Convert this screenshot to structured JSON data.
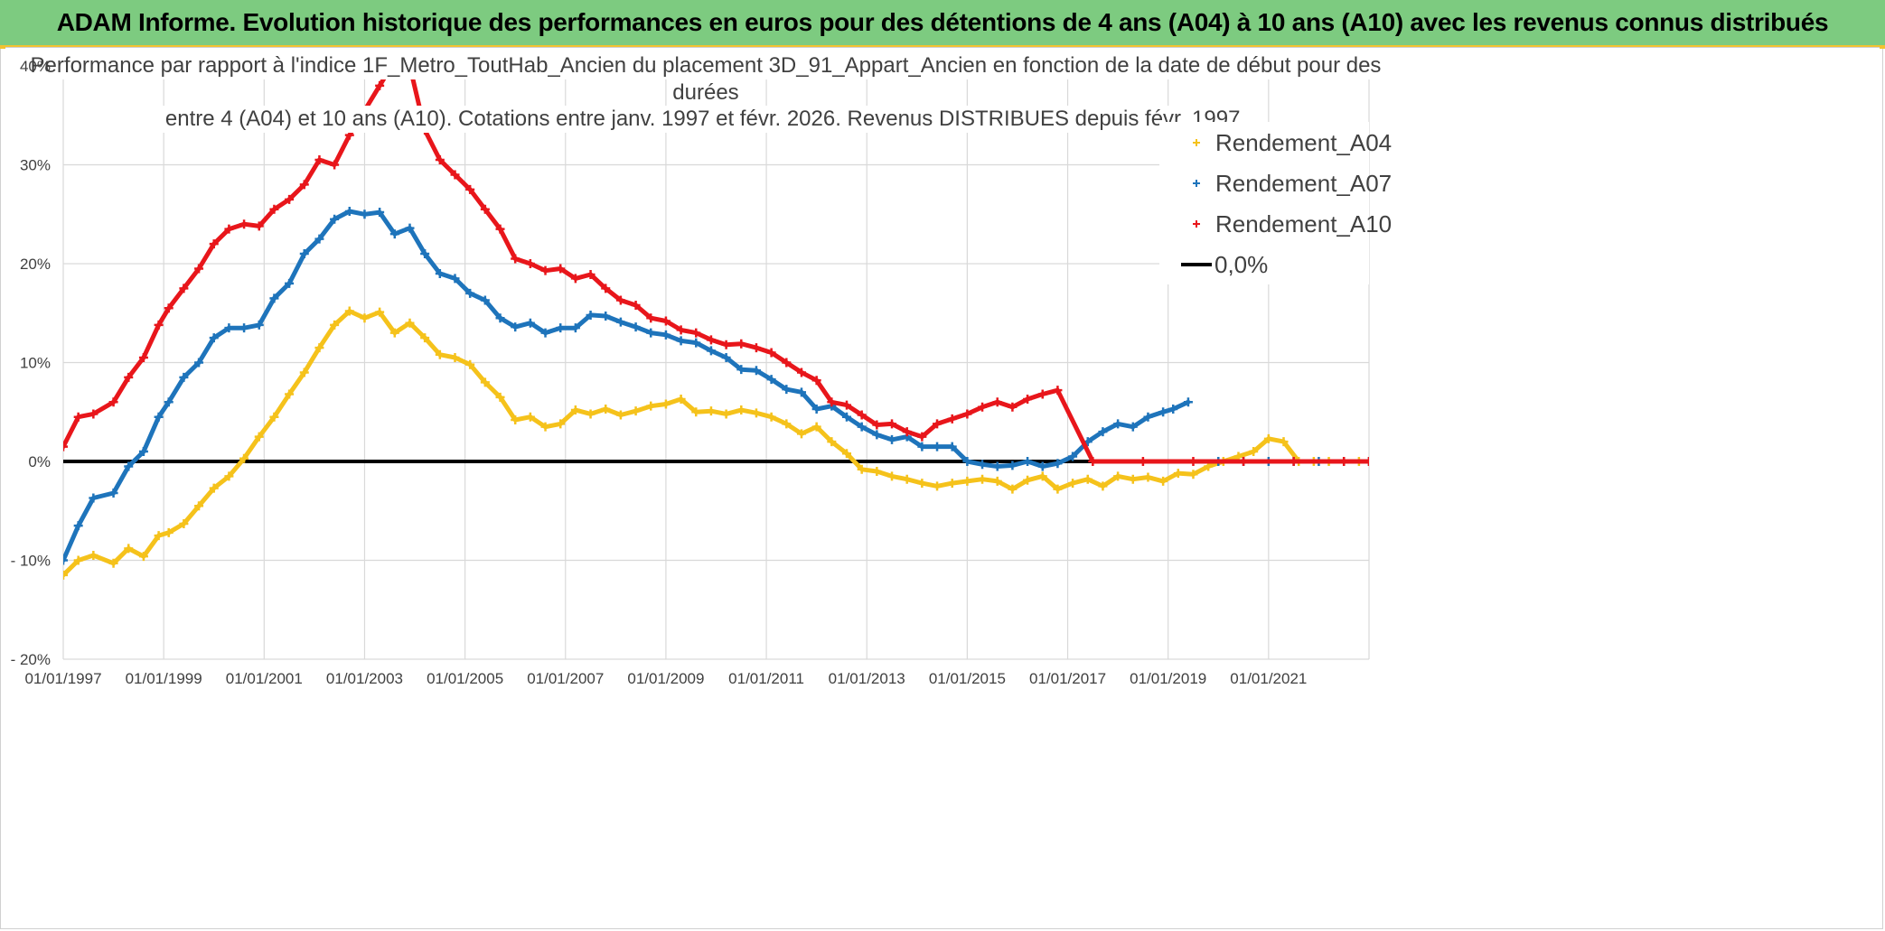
{
  "banner": {
    "title": "ADAM Informe. Evolution historique des performances en euros pour des détentions de 4 ans (A04) à 10 ans (A10) avec les revenus connus distribués"
  },
  "chart_data": {
    "type": "line",
    "title_lines": [
      "Performance par rapport à l'indice 1F_Metro_ToutHab_Ancien  du placement 3D_91_Appart_Ancien en fonction de la date de début pour des",
      "durées",
      "entre 4 (A04) et 10 ans (A10). Cotations entre janv. 1997 et févr. 2026. Revenus DISTRIBUES depuis févr. 1997."
    ],
    "xlabel": "",
    "ylabel": "",
    "x_range": [
      "1997-01-01",
      "2022-12-31"
    ],
    "ylim": [
      -20,
      40
    ],
    "y_ticks": [
      {
        "value": 40,
        "label": "40%"
      },
      {
        "value": 30,
        "label": "30%"
      },
      {
        "value": 20,
        "label": "20%"
      },
      {
        "value": 10,
        "label": "10%"
      },
      {
        "value": 0,
        "label": "0%"
      },
      {
        "value": -10,
        "label": "- 10%"
      },
      {
        "value": -20,
        "label": "- 20%"
      }
    ],
    "x_ticks": [
      {
        "value": 1997.0,
        "label": "01/01/1997"
      },
      {
        "value": 1999.0,
        "label": "01/01/1999"
      },
      {
        "value": 2001.0,
        "label": "01/01/2001"
      },
      {
        "value": 2003.0,
        "label": "01/01/2003"
      },
      {
        "value": 2005.0,
        "label": "01/01/2005"
      },
      {
        "value": 2007.0,
        "label": "01/01/2007"
      },
      {
        "value": 2009.0,
        "label": "01/01/2009"
      },
      {
        "value": 2011.0,
        "label": "01/01/2011"
      },
      {
        "value": 2013.0,
        "label": "01/01/2013"
      },
      {
        "value": 2015.0,
        "label": "01/01/2015"
      },
      {
        "value": 2017.0,
        "label": "01/01/2017"
      },
      {
        "value": 2019.0,
        "label": "01/01/2019"
      },
      {
        "value": 2021.0,
        "label": "01/01/2021"
      }
    ],
    "grid": true,
    "legend_position": "top-right",
    "series": [
      {
        "name": "Rendement_A04",
        "color": "#f5c21b",
        "x": [
          1997.0,
          1997.3,
          1997.6,
          1998.0,
          1998.3,
          1998.6,
          1998.9,
          1999.1,
          1999.4,
          1999.7,
          2000.0,
          2000.3,
          2000.6,
          2000.9,
          2001.2,
          2001.5,
          2001.8,
          2002.1,
          2002.4,
          2002.7,
          2003.0,
          2003.3,
          2003.6,
          2003.9,
          2004.2,
          2004.5,
          2004.8,
          2005.1,
          2005.4,
          2005.7,
          2006.0,
          2006.3,
          2006.6,
          2006.9,
          2007.2,
          2007.5,
          2007.8,
          2008.1,
          2008.4,
          2008.7,
          2009.0,
          2009.3,
          2009.6,
          2009.9,
          2010.2,
          2010.5,
          2010.8,
          2011.1,
          2011.4,
          2011.7,
          2012.0,
          2012.3,
          2012.6,
          2012.9,
          2013.2,
          2013.5,
          2013.8,
          2014.1,
          2014.4,
          2014.7,
          2015.0,
          2015.3,
          2015.6,
          2015.9,
          2016.2,
          2016.5,
          2016.8,
          2017.1,
          2017.4,
          2017.7,
          2018.0,
          2018.3,
          2018.6,
          2018.9,
          2019.2,
          2019.5,
          2019.8,
          2020.1,
          2020.4,
          2020.7,
          2021.0,
          2021.3,
          2021.6,
          2021.9,
          2022.2,
          2022.5,
          2022.8,
          2023.0
        ],
        "values": [
          -11.5,
          -10.0,
          -9.5,
          -10.3,
          -8.8,
          -9.6,
          -7.5,
          -7.2,
          -6.3,
          -4.5,
          -2.7,
          -1.5,
          0.3,
          2.5,
          4.5,
          6.8,
          9.0,
          11.5,
          13.8,
          15.2,
          14.5,
          15.1,
          13.0,
          14.0,
          12.5,
          10.8,
          10.5,
          9.8,
          8.0,
          6.5,
          4.2,
          4.5,
          3.5,
          3.8,
          5.2,
          4.8,
          5.3,
          4.7,
          5.1,
          5.6,
          5.8,
          6.3,
          5.0,
          5.1,
          4.8,
          5.2,
          4.9,
          4.5,
          3.8,
          2.8,
          3.5,
          2.0,
          0.8,
          -0.8,
          -1.0,
          -1.5,
          -1.8,
          -2.2,
          -2.5,
          -2.2,
          -2.0,
          -1.8,
          -2.0,
          -2.8,
          -1.9,
          -1.5,
          -2.8,
          -2.2,
          -1.8,
          -2.5,
          -1.5,
          -1.8,
          -1.6,
          -2.0,
          -1.2,
          -1.3,
          -0.5,
          0.0,
          0.5,
          1.0,
          2.3,
          2.0,
          0.0,
          0.0,
          0.0,
          0.0,
          0.0,
          0.0
        ]
      },
      {
        "name": "Rendement_A07",
        "color": "#1e74bb",
        "x": [
          1997.0,
          1997.3,
          1997.6,
          1998.0,
          1998.3,
          1998.6,
          1998.9,
          1999.1,
          1999.4,
          1999.7,
          2000.0,
          2000.3,
          2000.6,
          2000.9,
          2001.2,
          2001.5,
          2001.8,
          2002.1,
          2002.4,
          2002.7,
          2003.0,
          2003.3,
          2003.6,
          2003.9,
          2004.2,
          2004.5,
          2004.8,
          2005.1,
          2005.4,
          2005.7,
          2006.0,
          2006.3,
          2006.6,
          2006.9,
          2007.2,
          2007.5,
          2007.8,
          2008.1,
          2008.4,
          2008.7,
          2009.0,
          2009.3,
          2009.6,
          2009.9,
          2010.2,
          2010.5,
          2010.8,
          2011.1,
          2011.4,
          2011.7,
          2012.0,
          2012.3,
          2012.6,
          2012.9,
          2013.2,
          2013.5,
          2013.8,
          2014.1,
          2014.4,
          2014.7,
          2015.0,
          2015.3,
          2015.6,
          2015.9,
          2016.2,
          2016.5,
          2016.8,
          2017.1,
          2017.4,
          2017.7,
          2018.0,
          2018.3,
          2018.6,
          2018.9,
          2019.1,
          2019.4,
          2019.7,
          2020.0,
          2020.5,
          2021.0,
          2021.5,
          2022.0,
          2022.5,
          2023.0
        ],
        "values": [
          -10.0,
          -6.5,
          -3.7,
          -3.2,
          -0.5,
          1.0,
          4.5,
          6.0,
          8.5,
          10.0,
          12.5,
          13.5,
          13.5,
          13.8,
          16.5,
          18.0,
          21.0,
          22.5,
          24.5,
          25.3,
          25.0,
          25.2,
          23.0,
          23.6,
          21.0,
          19.0,
          18.5,
          17.0,
          16.3,
          14.5,
          13.6,
          14.0,
          13.0,
          13.5,
          13.5,
          14.8,
          14.7,
          14.1,
          13.6,
          13.0,
          12.8,
          12.2,
          12.0,
          11.2,
          10.5,
          9.3,
          9.2,
          8.3,
          7.3,
          7.0,
          5.3,
          5.6,
          4.5,
          3.5,
          2.7,
          2.2,
          2.5,
          1.5,
          1.5,
          1.5,
          0.0,
          -0.3,
          -0.5,
          -0.4,
          0.0,
          -0.5,
          -0.2,
          0.5,
          2.0,
          3.0,
          3.8,
          3.5,
          4.5,
          5.0,
          5.3,
          6.0,
          null,
          0.0,
          0.0,
          0.0,
          0.0,
          0.0,
          0.0,
          0.0
        ]
      },
      {
        "name": "Rendement_A10",
        "color": "#e8161b",
        "x": [
          1997.0,
          1997.3,
          1997.6,
          1998.0,
          1998.3,
          1998.6,
          1998.9,
          1999.1,
          1999.4,
          1999.7,
          2000.0,
          2000.3,
          2000.6,
          2000.9,
          2001.2,
          2001.5,
          2001.8,
          2002.1,
          2002.4,
          2002.7,
          2003.0,
          2003.3,
          2003.6,
          2003.9,
          2004.2,
          2004.5,
          2004.8,
          2005.1,
          2005.4,
          2005.7,
          2006.0,
          2006.3,
          2006.6,
          2006.9,
          2007.2,
          2007.5,
          2007.8,
          2008.1,
          2008.4,
          2008.7,
          2009.0,
          2009.3,
          2009.6,
          2009.9,
          2010.2,
          2010.5,
          2010.8,
          2011.1,
          2011.4,
          2011.7,
          2012.0,
          2012.3,
          2012.6,
          2012.9,
          2013.2,
          2013.5,
          2013.8,
          2014.1,
          2014.4,
          2014.7,
          2015.0,
          2015.3,
          2015.6,
          2015.9,
          2016.2,
          2016.5,
          2016.8,
          2017.5,
          2018.5,
          2019.5,
          2020.5,
          2021.5,
          2022.5,
          2023.0
        ],
        "values": [
          1.5,
          4.5,
          4.8,
          6.0,
          8.5,
          10.5,
          13.8,
          15.5,
          17.5,
          19.5,
          22.0,
          23.5,
          24.0,
          23.8,
          25.5,
          26.5,
          28.0,
          30.5,
          30.0,
          33.0,
          35.5,
          38.0,
          40.5,
          40.0,
          33.5,
          30.5,
          29.0,
          27.5,
          25.5,
          23.5,
          20.5,
          20.0,
          19.3,
          19.5,
          18.5,
          18.9,
          17.5,
          16.3,
          15.8,
          14.5,
          14.2,
          13.3,
          13.0,
          12.3,
          11.8,
          11.9,
          11.5,
          11.0,
          10.0,
          9.0,
          8.2,
          6.0,
          5.7,
          4.7,
          3.7,
          3.8,
          3.0,
          2.5,
          3.8,
          4.3,
          4.8,
          5.5,
          6.0,
          5.5,
          6.3,
          6.8,
          7.2,
          0.0,
          0.0,
          0.0,
          0.0,
          0.0,
          0.0,
          0.0
        ]
      },
      {
        "name": "0,0%",
        "color": "#000000",
        "x": [
          1997.0,
          2023.0
        ],
        "values": [
          0,
          0
        ]
      }
    ]
  }
}
